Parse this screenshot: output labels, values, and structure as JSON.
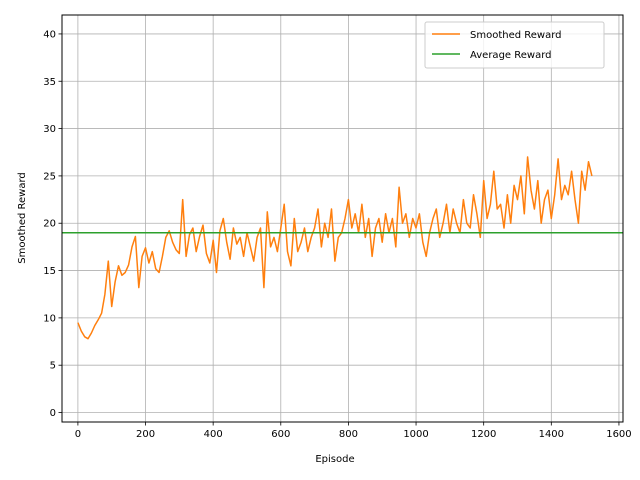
{
  "chart_data": {
    "type": "line",
    "title": "",
    "xlabel": "Episode",
    "ylabel": "Smoothed Reward",
    "xlim": [
      -47,
      1612
    ],
    "ylim": [
      -1,
      42
    ],
    "xticks": [
      0,
      200,
      400,
      600,
      800,
      1000,
      1200,
      1400,
      1600
    ],
    "yticks": [
      0,
      5,
      10,
      15,
      20,
      25,
      30,
      35,
      40
    ],
    "grid": true,
    "legend_position": "top-right",
    "series": [
      {
        "name": "Smoothed Reward",
        "color": "#ff7f0e",
        "x": [
          0,
          10,
          20,
          30,
          40,
          50,
          60,
          70,
          80,
          90,
          100,
          110,
          120,
          130,
          140,
          150,
          160,
          170,
          180,
          190,
          200,
          210,
          220,
          230,
          240,
          250,
          260,
          270,
          280,
          290,
          300,
          310,
          320,
          330,
          340,
          350,
          360,
          370,
          380,
          390,
          400,
          410,
          420,
          430,
          440,
          450,
          460,
          470,
          480,
          490,
          500,
          510,
          520,
          530,
          540,
          550,
          560,
          570,
          580,
          590,
          600,
          610,
          620,
          630,
          640,
          650,
          660,
          670,
          680,
          690,
          700,
          710,
          720,
          730,
          740,
          750,
          760,
          770,
          780,
          790,
          800,
          810,
          820,
          830,
          840,
          850,
          860,
          870,
          880,
          890,
          900,
          910,
          920,
          930,
          940,
          950,
          960,
          970,
          980,
          990,
          1000,
          1010,
          1020,
          1030,
          1040,
          1050,
          1060,
          1070,
          1080,
          1090,
          1100,
          1110,
          1120,
          1130,
          1140,
          1150,
          1160,
          1170,
          1180,
          1190,
          1200,
          1210,
          1220,
          1230,
          1240,
          1250,
          1260,
          1270,
          1280,
          1290,
          1300,
          1310,
          1320,
          1330,
          1340,
          1350,
          1360,
          1370,
          1380,
          1390,
          1400,
          1410,
          1420,
          1430,
          1440,
          1450,
          1460,
          1470,
          1480,
          1490,
          1500,
          1510,
          1520
        ],
        "values": [
          9.5,
          8.6,
          8.0,
          7.8,
          8.4,
          9.2,
          9.8,
          10.5,
          12.5,
          16.0,
          11.2,
          13.8,
          15.5,
          14.5,
          14.8,
          15.6,
          17.5,
          18.6,
          13.2,
          16.5,
          17.4,
          15.8,
          17.0,
          15.2,
          14.8,
          16.5,
          18.5,
          19.2,
          18.0,
          17.2,
          16.8,
          22.5,
          16.5,
          18.8,
          19.5,
          17.0,
          18.6,
          19.8,
          16.8,
          15.8,
          18.2,
          14.8,
          19.2,
          20.5,
          18.0,
          16.2,
          19.5,
          17.8,
          18.5,
          16.5,
          19.0,
          17.5,
          16.0,
          18.5,
          19.5,
          13.2,
          21.2,
          17.5,
          18.5,
          17.0,
          19.5,
          22.0,
          17.0,
          15.5,
          20.5,
          17.0,
          18.0,
          19.5,
          17.0,
          18.5,
          19.5,
          21.5,
          17.5,
          20.0,
          18.5,
          21.5,
          16.0,
          18.5,
          19.0,
          20.5,
          22.5,
          19.5,
          21.0,
          19.0,
          22.0,
          18.5,
          20.5,
          16.5,
          19.5,
          20.5,
          18.0,
          21.0,
          19.0,
          20.5,
          17.5,
          23.8,
          20.0,
          21.0,
          18.5,
          20.5,
          19.5,
          21.0,
          18.0,
          16.5,
          19.0,
          20.5,
          21.5,
          18.5,
          20.0,
          22.0,
          19.0,
          21.5,
          20.0,
          19.0,
          22.5,
          20.0,
          19.5,
          23.0,
          21.0,
          18.5,
          24.5,
          20.5,
          22.0,
          25.5,
          21.5,
          22.0,
          19.5,
          23.0,
          20.0,
          24.0,
          22.5,
          25.0,
          21.0,
          27.0,
          23.5,
          21.5,
          24.5,
          20.0,
          22.5,
          23.5,
          20.5,
          23.0,
          26.8,
          22.5,
          24.0,
          23.0,
          25.5,
          22.5,
          20.0,
          25.5,
          23.5,
          26.5,
          25.0
        ]
      },
      {
        "name": "Average Reward",
        "color": "#2ca02c",
        "constant": 19.0
      }
    ]
  }
}
